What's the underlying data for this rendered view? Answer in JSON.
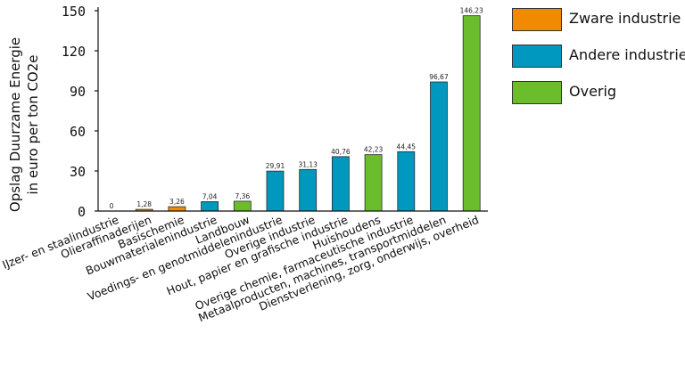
{
  "chart_data": {
    "type": "bar",
    "ylabel": "Opslag Duurzame Energie\nin euro per ton CO2e",
    "xlabel": "",
    "ylim": [
      0,
      150
    ],
    "yticks": [
      "0",
      "30",
      "60",
      "90",
      "120",
      "150"
    ],
    "legend_position": "top-right",
    "grid": false,
    "groups": [
      {
        "name": "Zware industrie",
        "color": "#f28a00"
      },
      {
        "name": "Andere industrie",
        "color": "#0098be"
      },
      {
        "name": "Overig",
        "color": "#6cbd2c"
      }
    ],
    "categories": [
      "IJzer- en staalindustrie",
      "Olieraffinaderijen",
      "Basischemie",
      "Bouwmaterialenindustrie",
      "Landbouw",
      "Voedings- en genotmiddelenindustrie",
      "Overige industrie",
      "Hout, papier en grafische industrie",
      "Huishoudens",
      "Overige chemie, farmaceutische industrie",
      "Metaalproducten, machines, transportmiddelen",
      "Dienstverlening, zorg, onderwijs, overheid"
    ],
    "values": [
      0,
      1.28,
      3.26,
      7.04,
      7.36,
      29.91,
      31.13,
      40.76,
      42.23,
      44.45,
      96.67,
      146.23
    ],
    "value_labels": [
      "0",
      "1,28",
      "3,26",
      "7,04",
      "7,36",
      "29,91",
      "31,13",
      "40,76",
      "42,23",
      "44,45",
      "96,67",
      "146,23"
    ],
    "bar_group": [
      0,
      0,
      0,
      1,
      2,
      1,
      1,
      1,
      2,
      1,
      1,
      2
    ]
  }
}
